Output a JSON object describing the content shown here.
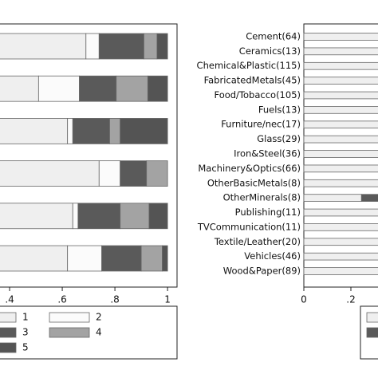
{
  "chart_data": [
    {
      "type": "stacked-bar-horizontal",
      "categories": [
        null,
        null,
        null,
        null,
        null,
        null
      ],
      "series": [
        {
          "name": "1",
          "color": "#efefef",
          "values": [
            0.69,
            0.51,
            0.62,
            0.74,
            0.64,
            0.62
          ]
        },
        {
          "name": "2",
          "color": "#fbfbfb",
          "values": [
            0.05,
            0.155,
            0.02,
            0.08,
            0.02,
            0.13
          ]
        },
        {
          "name": "3",
          "color": "#5a5a5a",
          "values": [
            0.17,
            0.14,
            0.14,
            0.1,
            0.16,
            0.15
          ]
        },
        {
          "name": "4",
          "color": "#a3a3a3",
          "values": [
            0.05,
            0.12,
            0.04,
            0.08,
            0.11,
            0.08
          ]
        },
        {
          "name": "5",
          "color": "#545454",
          "values": [
            0.04,
            0.075,
            0.18,
            0,
            0.07,
            0.02
          ]
        }
      ],
      "xlim": [
        0,
        1.036
      ],
      "xticks": [
        {
          "value": 0.4,
          "label": ".4"
        },
        {
          "value": 0.6,
          "label": ".6"
        },
        {
          "value": 0.8,
          "label": ".8"
        },
        1
      ]
    },
    {
      "type": "stacked-bar-horizontal",
      "categories": [
        "Cement(64)",
        "Ceramics(13)",
        "Chemical&Plastic(115)",
        "FabricatedMetals(45)",
        "Food/Tobacco(105)",
        "Fuels(13)",
        "Furniture/nec(17)",
        "Glass(29)",
        "Iron&Steel(36)",
        "Machinery&Optics(66)",
        "OtherBasicMetals(8)",
        "OtherMinerals(8)",
        "Publishing(11)",
        "TVCommunication(11)",
        "Textile/Leather(20)",
        "Vehicles(46)",
        "Wood&Paper(89)"
      ],
      "series": [
        {
          "color": "#efefef",
          "values": [
            1,
            1,
            1,
            1,
            1,
            1,
            1,
            1,
            1,
            1,
            1,
            0.245,
            1,
            1,
            1,
            1,
            1
          ]
        },
        {
          "color": "#5a5a5a",
          "values": [
            0,
            0,
            0,
            0,
            0,
            0,
            0,
            0,
            0,
            0,
            0,
            0.755,
            0,
            0,
            0,
            0,
            0
          ]
        }
      ],
      "xlim": [
        0,
        1.03
      ],
      "xticks": [
        0,
        {
          "value": 0.2,
          "label": ".2"
        }
      ]
    }
  ]
}
